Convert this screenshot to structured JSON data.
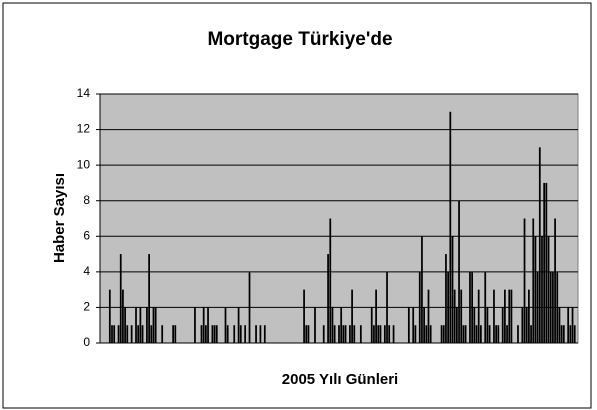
{
  "chart_data": {
    "type": "bar",
    "title": "Mortgage Türkiye'de",
    "x_label": "2005 Yılı Günleri",
    "y_label": "Haber Sayısı",
    "values": [
      0,
      0,
      0,
      0,
      3,
      1,
      1,
      0,
      1,
      5,
      3,
      2,
      1,
      0,
      1,
      0,
      2,
      1,
      2,
      1,
      0,
      2,
      5,
      1,
      2,
      2,
      0,
      0,
      1,
      0,
      0,
      0,
      0,
      1,
      1,
      0,
      0,
      0,
      0,
      0,
      0,
      0,
      0,
      2,
      0,
      0,
      1,
      2,
      1,
      2,
      0,
      1,
      1,
      1,
      0,
      0,
      0,
      2,
      1,
      0,
      0,
      1,
      0,
      2,
      1,
      0,
      1,
      0,
      4,
      0,
      0,
      1,
      0,
      1,
      0,
      1,
      0,
      0,
      0,
      0,
      0,
      0,
      0,
      0,
      0,
      0,
      0,
      0,
      0,
      0,
      0,
      0,
      0,
      3,
      1,
      1,
      0,
      0,
      2,
      0,
      0,
      0,
      1,
      0,
      5,
      7,
      2,
      1,
      0,
      1,
      2,
      1,
      1,
      0,
      1,
      3,
      1,
      0,
      0,
      1,
      0,
      0,
      0,
      0,
      2,
      1,
      3,
      1,
      1,
      0,
      1,
      4,
      1,
      0,
      1,
      0,
      0,
      0,
      0,
      0,
      0,
      2,
      0,
      2,
      1,
      0,
      4,
      6,
      2,
      1,
      3,
      1,
      0,
      0,
      0,
      0,
      1,
      1,
      5,
      4,
      13,
      6,
      3,
      2,
      8,
      3,
      1,
      1,
      0,
      4,
      4,
      2,
      1,
      3,
      1,
      0,
      4,
      2,
      1,
      0,
      3,
      1,
      1,
      0,
      2,
      3,
      1,
      3,
      3,
      0,
      0,
      1,
      0,
      2,
      7,
      2,
      3,
      1,
      7,
      6,
      4,
      11,
      6,
      9,
      9,
      6,
      4,
      4,
      7,
      4,
      2,
      1,
      1,
      0,
      2,
      1,
      2,
      1,
      0
    ],
    "color": "#000000",
    "background": "#c0c0c0",
    "ylim": [
      0,
      14
    ],
    "yticks": [
      0,
      2,
      4,
      6,
      8,
      10,
      12,
      14
    ],
    "grid": true
  }
}
